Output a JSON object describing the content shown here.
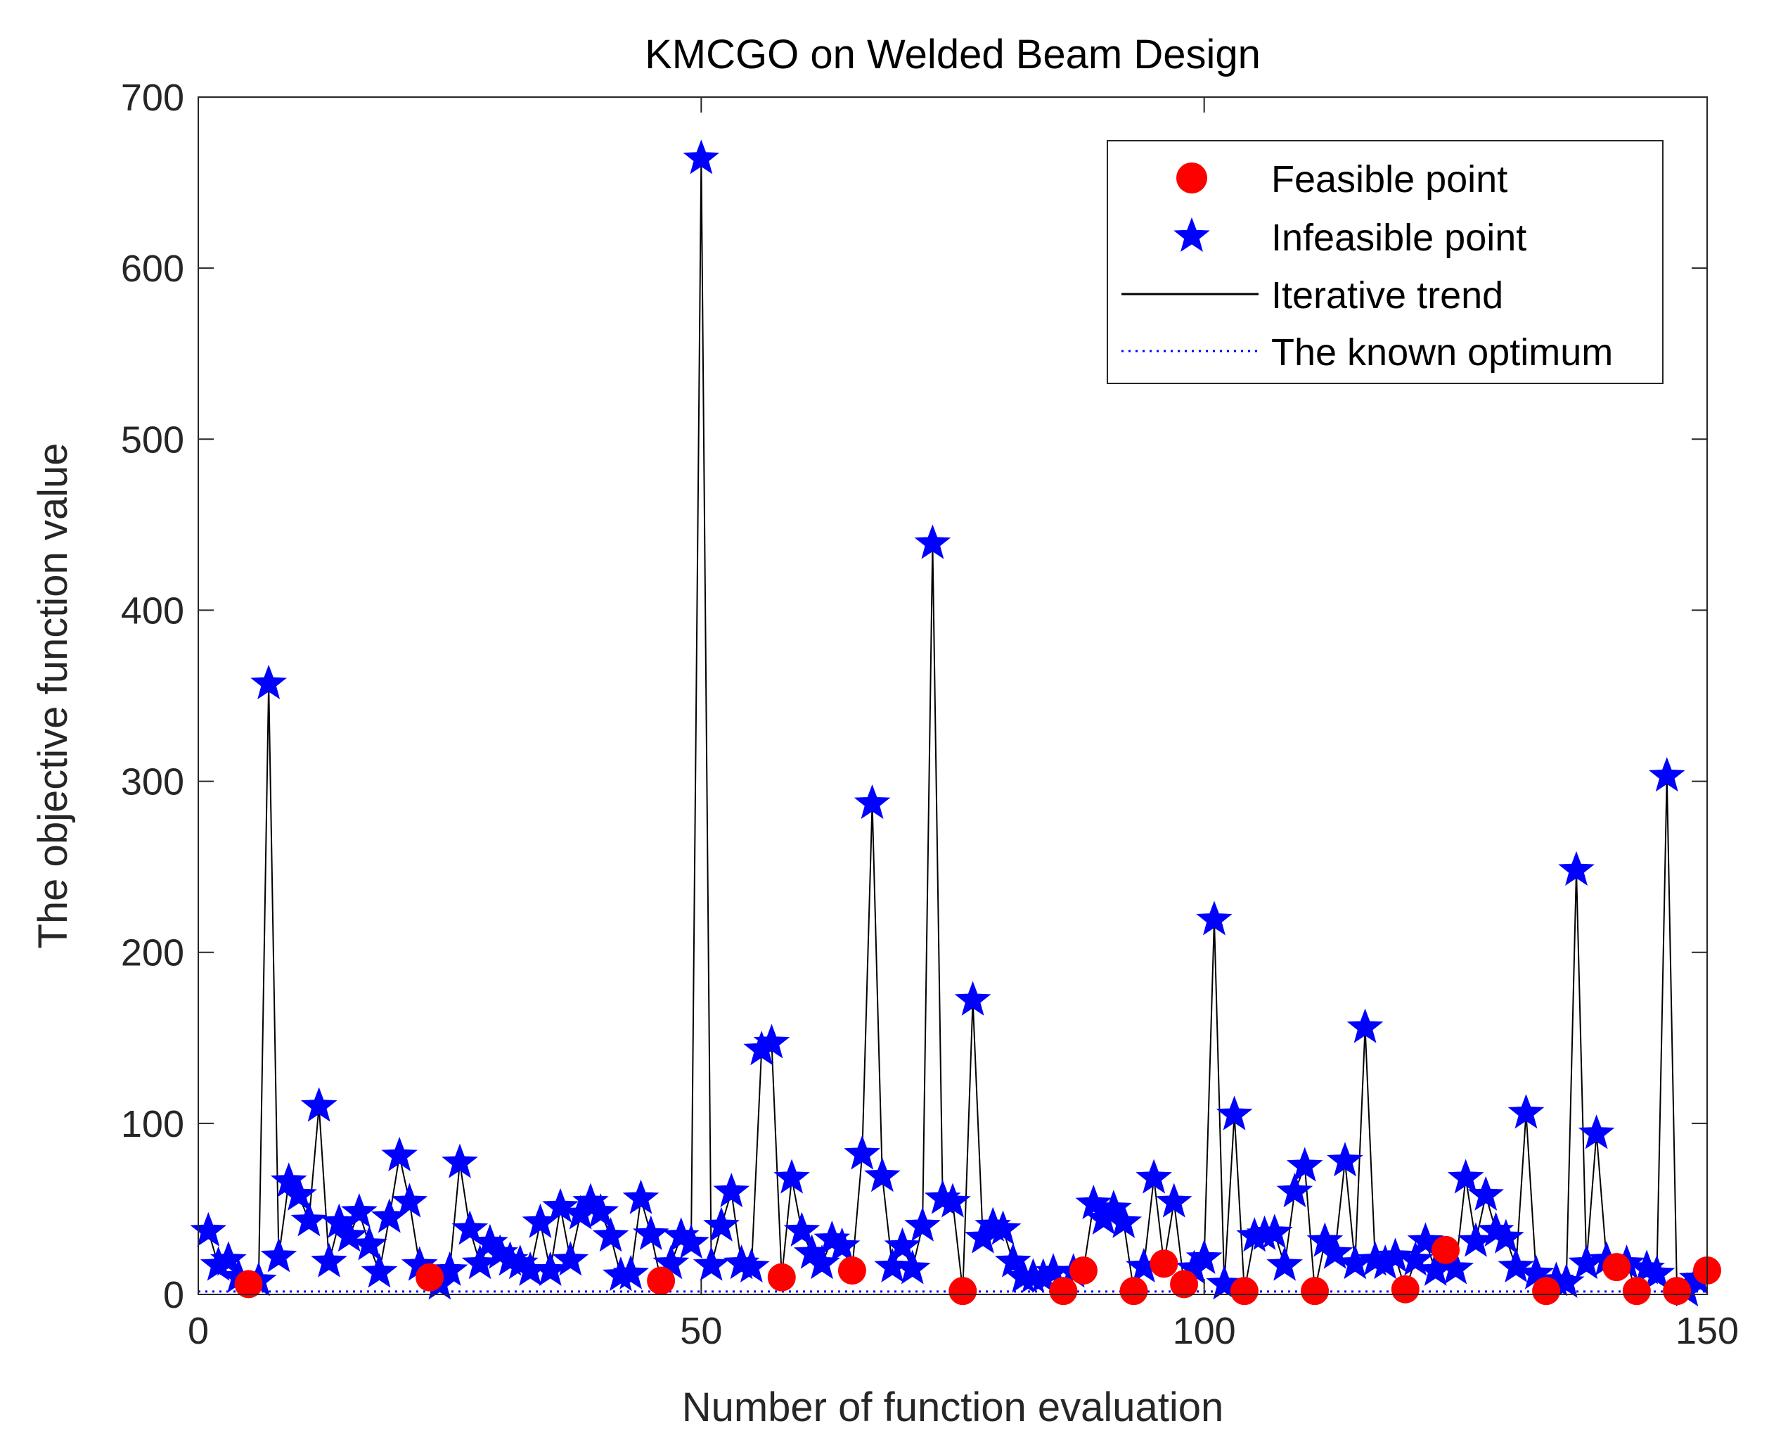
{
  "chart_data": {
    "type": "scatter",
    "title": "KMCGO on Welded Beam Design",
    "xlabel": "Number of function evaluation",
    "ylabel": "The objective function value",
    "xlim": [
      0,
      150
    ],
    "ylim": [
      0,
      700
    ],
    "xticks": [
      "0",
      "50",
      "100",
      "150"
    ],
    "yticks": [
      "0",
      "100",
      "200",
      "300",
      "400",
      "500",
      "600",
      "700"
    ],
    "legend_position": "top-right",
    "legend": {
      "feasible": "Feasible point",
      "infeasible": "Infeasible point",
      "trend": "Iterative trend",
      "optimum": "The known optimum"
    },
    "colors": {
      "feasible": "#ff0000",
      "infeasible": "#0000ff",
      "trend": "#000000",
      "optimum": "#0000ff",
      "axis": "#262626"
    },
    "known_optimum": 1.72,
    "points": [
      [
        1,
        37,
        0
      ],
      [
        2,
        17,
        0
      ],
      [
        3,
        20,
        0
      ],
      [
        4,
        10,
        0
      ],
      [
        5,
        6,
        1
      ],
      [
        6,
        8,
        0
      ],
      [
        7,
        357,
        0
      ],
      [
        8,
        22,
        0
      ],
      [
        9,
        66,
        0
      ],
      [
        10,
        58,
        0
      ],
      [
        11,
        43,
        0
      ],
      [
        12,
        110,
        0
      ],
      [
        13,
        19,
        0
      ],
      [
        14,
        42,
        0
      ],
      [
        15,
        34,
        0
      ],
      [
        16,
        48,
        0
      ],
      [
        17,
        29,
        0
      ],
      [
        18,
        13,
        0
      ],
      [
        19,
        45,
        0
      ],
      [
        20,
        81,
        0
      ],
      [
        21,
        54,
        0
      ],
      [
        22,
        17,
        0
      ],
      [
        23,
        10,
        1
      ],
      [
        24,
        6,
        0
      ],
      [
        25,
        14,
        0
      ],
      [
        26,
        77,
        0
      ],
      [
        27,
        38,
        0
      ],
      [
        28,
        18,
        0
      ],
      [
        29,
        30,
        0
      ],
      [
        30,
        24,
        0
      ],
      [
        31,
        20,
        0
      ],
      [
        32,
        18,
        0
      ],
      [
        33,
        14,
        0
      ],
      [
        34,
        42,
        0
      ],
      [
        35,
        14,
        0
      ],
      [
        36,
        51,
        0
      ],
      [
        37,
        20,
        0
      ],
      [
        38,
        47,
        0
      ],
      [
        39,
        54,
        0
      ],
      [
        40,
        48,
        0
      ],
      [
        41,
        34,
        0
      ],
      [
        42,
        11,
        0
      ],
      [
        43,
        12,
        0
      ],
      [
        44,
        56,
        0
      ],
      [
        45,
        35,
        0
      ],
      [
        46,
        8,
        1
      ],
      [
        47,
        18,
        0
      ],
      [
        48,
        34,
        0
      ],
      [
        49,
        30,
        0
      ],
      [
        50,
        664,
        0
      ],
      [
        51,
        17,
        0
      ],
      [
        52,
        40,
        0
      ],
      [
        53,
        60,
        0
      ],
      [
        54,
        18,
        0
      ],
      [
        55,
        16,
        0
      ],
      [
        56,
        143,
        0
      ],
      [
        57,
        147,
        0
      ],
      [
        58,
        10,
        1
      ],
      [
        59,
        68,
        0
      ],
      [
        60,
        37,
        0
      ],
      [
        61,
        24,
        0
      ],
      [
        62,
        18,
        0
      ],
      [
        63,
        32,
        0
      ],
      [
        64,
        28,
        0
      ],
      [
        65,
        14,
        1
      ],
      [
        66,
        82,
        0
      ],
      [
        67,
        287,
        0
      ],
      [
        68,
        69,
        0
      ],
      [
        69,
        16,
        0
      ],
      [
        70,
        28,
        0
      ],
      [
        71,
        15,
        0
      ],
      [
        72,
        40,
        0
      ],
      [
        73,
        439,
        0
      ],
      [
        74,
        56,
        0
      ],
      [
        75,
        54,
        0
      ],
      [
        76,
        2,
        1
      ],
      [
        77,
        172,
        0
      ],
      [
        78,
        33,
        0
      ],
      [
        79,
        40,
        0
      ],
      [
        80,
        38,
        0
      ],
      [
        81,
        19,
        0
      ],
      [
        82,
        10,
        0
      ],
      [
        83,
        10,
        0
      ],
      [
        84,
        10,
        0
      ],
      [
        85,
        13,
        0
      ],
      [
        86,
        2,
        1
      ],
      [
        87,
        13,
        0
      ],
      [
        88,
        14,
        1
      ],
      [
        89,
        53,
        0
      ],
      [
        90,
        44,
        0
      ],
      [
        91,
        50,
        0
      ],
      [
        92,
        42,
        0
      ],
      [
        93,
        2,
        1
      ],
      [
        94,
        16,
        0
      ],
      [
        95,
        68,
        0
      ],
      [
        96,
        18,
        1
      ],
      [
        97,
        54,
        0
      ],
      [
        98,
        6,
        1
      ],
      [
        99,
        15,
        0
      ],
      [
        100,
        21,
        0
      ],
      [
        101,
        219,
        0
      ],
      [
        102,
        6,
        0
      ],
      [
        103,
        105,
        0
      ],
      [
        104,
        2,
        1
      ],
      [
        105,
        34,
        0
      ],
      [
        106,
        35,
        0
      ],
      [
        107,
        36,
        0
      ],
      [
        108,
        17,
        0
      ],
      [
        109,
        60,
        0
      ],
      [
        110,
        75,
        0
      ],
      [
        111,
        2,
        1
      ],
      [
        112,
        31,
        0
      ],
      [
        113,
        24,
        0
      ],
      [
        114,
        78,
        0
      ],
      [
        115,
        18,
        0
      ],
      [
        116,
        156,
        0
      ],
      [
        117,
        20,
        0
      ],
      [
        118,
        18,
        0
      ],
      [
        119,
        22,
        0
      ],
      [
        120,
        3,
        1
      ],
      [
        121,
        20,
        0
      ],
      [
        122,
        31,
        0
      ],
      [
        123,
        14,
        0
      ],
      [
        124,
        26,
        1
      ],
      [
        125,
        15,
        0
      ],
      [
        126,
        68,
        0
      ],
      [
        127,
        31,
        0
      ],
      [
        128,
        58,
        0
      ],
      [
        129,
        37,
        0
      ],
      [
        130,
        33,
        0
      ],
      [
        131,
        16,
        0
      ],
      [
        132,
        106,
        0
      ],
      [
        133,
        12,
        0
      ],
      [
        134,
        2,
        1
      ],
      [
        135,
        8,
        0
      ],
      [
        136,
        7,
        0
      ],
      [
        137,
        248,
        0
      ],
      [
        138,
        18,
        0
      ],
      [
        139,
        94,
        0
      ],
      [
        140,
        20,
        0
      ],
      [
        141,
        16,
        1
      ],
      [
        142,
        18,
        0
      ],
      [
        143,
        2,
        1
      ],
      [
        144,
        15,
        0
      ],
      [
        145,
        12,
        0
      ],
      [
        146,
        303,
        0
      ],
      [
        147,
        2,
        1
      ],
      [
        148,
        2,
        0
      ],
      [
        149,
        9,
        0
      ],
      [
        150,
        14,
        1
      ]
    ]
  }
}
